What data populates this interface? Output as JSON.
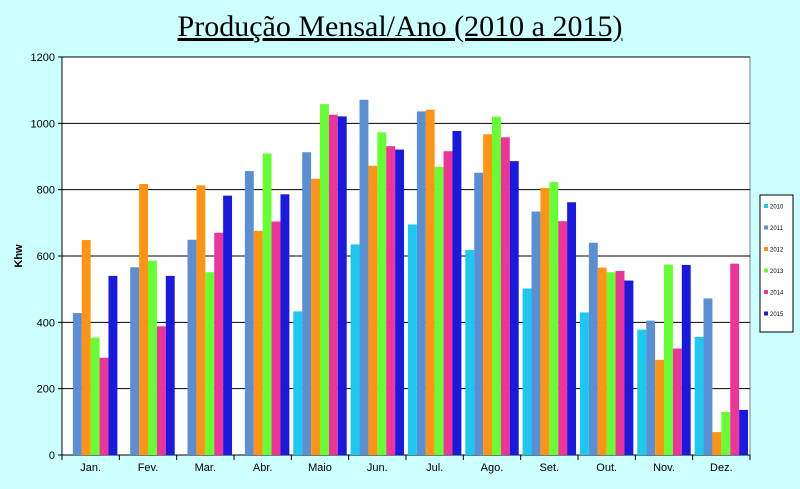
{
  "chart_data": {
    "type": "bar",
    "title": "Produção Mensal/Ano (2010 a 2015)",
    "ylabel": "Khw",
    "xlabel": "",
    "ylim": [
      0,
      1200
    ],
    "yticks": [
      0,
      200,
      400,
      600,
      800,
      1000,
      1200
    ],
    "grid": true,
    "legend_position": "right",
    "categories": [
      "Jan.",
      "Fev.",
      "Mar.",
      "Abr.",
      "Maio",
      "Jun.",
      "Jul.",
      "Ago.",
      "Set.",
      "Out.",
      "Nov.",
      "Dez."
    ],
    "series": [
      {
        "name": "2010",
        "color": "#1cc8f0",
        "values": [
          null,
          null,
          null,
          null,
          433,
          635,
          695,
          618,
          502,
          430,
          378,
          356
        ]
      },
      {
        "name": "2011",
        "color": "#5b8fd4",
        "values": [
          428,
          566,
          649,
          856,
          913,
          1071,
          1036,
          851,
          734,
          640,
          405,
          472
        ]
      },
      {
        "name": "2012",
        "color": "#ff9314",
        "values": [
          648,
          817,
          813,
          676,
          833,
          872,
          1041,
          967,
          805,
          565,
          287,
          69
        ]
      },
      {
        "name": "2013",
        "color": "#66ff33",
        "values": [
          354,
          586,
          551,
          909,
          1058,
          973,
          869,
          1020,
          823,
          551,
          574,
          130
        ]
      },
      {
        "name": "2014",
        "color": "#ee3399",
        "values": [
          293,
          388,
          670,
          704,
          1026,
          931,
          916,
          958,
          705,
          555,
          321,
          577
        ]
      },
      {
        "name": "2015",
        "color": "#1a1adf",
        "values": [
          540,
          540,
          782,
          786,
          1021,
          921,
          977,
          886,
          762,
          526,
          573,
          136
        ]
      }
    ]
  }
}
